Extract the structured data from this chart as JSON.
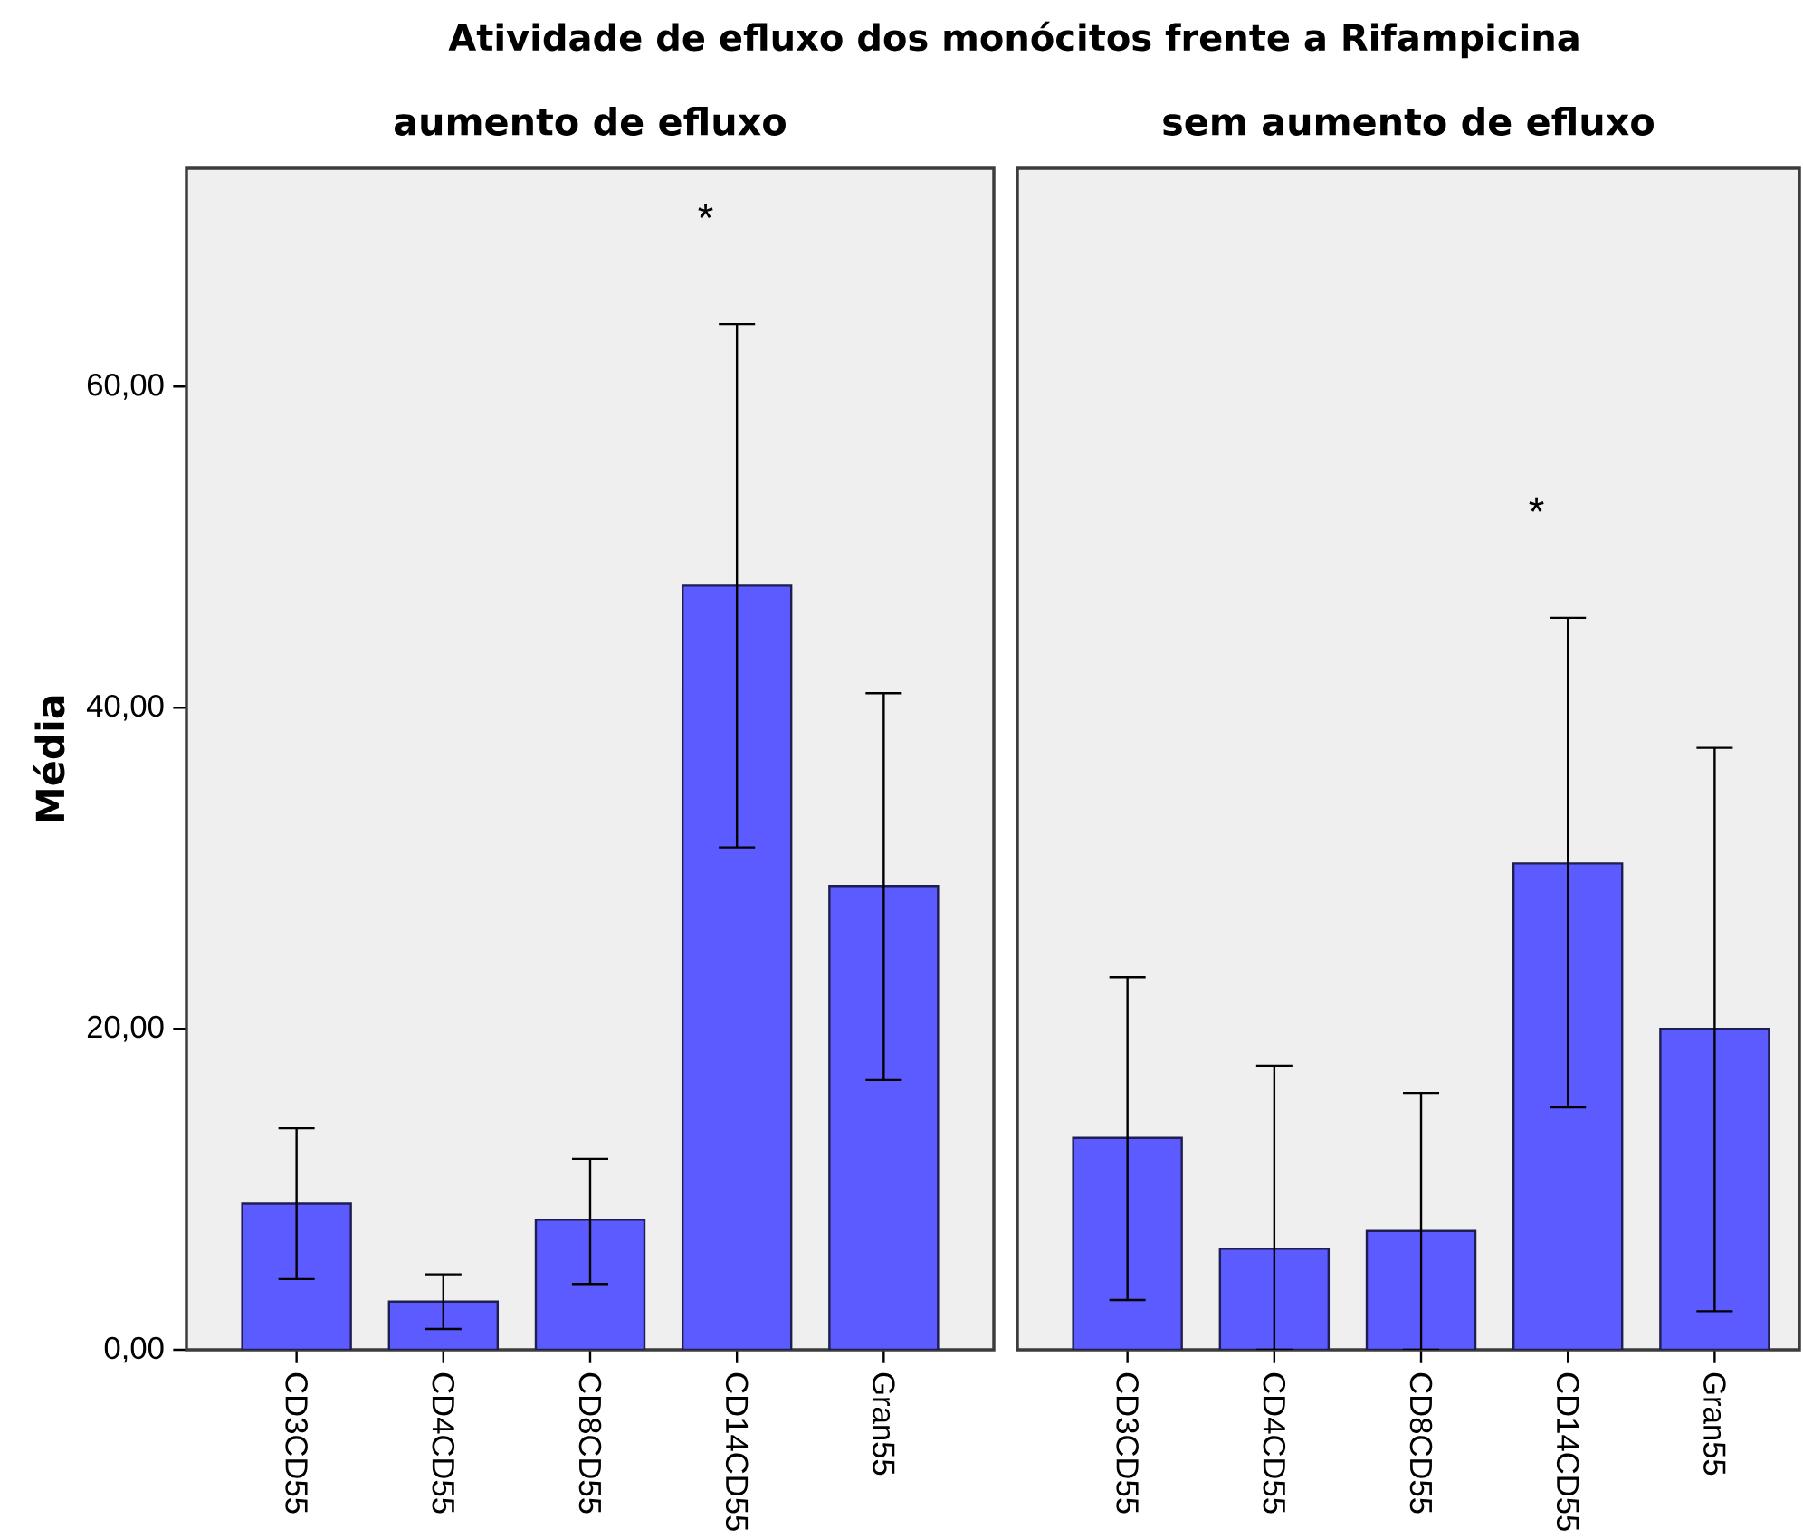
{
  "chart_data": [
    {
      "type": "bar",
      "title": "Atividade de efluxo dos monócitos frente a Rifampicina",
      "subtitle": "aumento de efluxo",
      "ylabel": "Média",
      "categories": [
        "CD3CD55",
        "CD4CD55",
        "CD8CD55",
        "CD14CD55",
        "Gran55"
      ],
      "values": [
        9.1,
        3.0,
        8.1,
        47.6,
        28.9
      ],
      "errors": [
        [
          4.4,
          13.8
        ],
        [
          1.3,
          4.7
        ],
        [
          4.1,
          11.9
        ],
        [
          31.3,
          63.9
        ],
        [
          16.8,
          40.9
        ]
      ],
      "color": "#5b5bff",
      "ylim": [
        0,
        73.6
      ],
      "yticks": [
        {
          "value": 0,
          "label": "0,00"
        },
        {
          "value": 20,
          "label": "20,00"
        },
        {
          "value": 40,
          "label": "40,00"
        },
        {
          "value": 60,
          "label": "60,00"
        }
      ],
      "annotations": [
        "*"
      ]
    },
    {
      "type": "bar",
      "subtitle": "sem aumento de efluxo",
      "categories": [
        "CD3CD55",
        "CD4CD55",
        "CD8CD55",
        "CD14CD55",
        "Gran55"
      ],
      "values": [
        13.2,
        6.3,
        7.4,
        30.3,
        20.0
      ],
      "errors": [
        [
          3.1,
          23.2
        ],
        [
          0,
          17.7
        ],
        [
          0,
          16.0
        ],
        [
          15.1,
          45.6
        ],
        [
          2.4,
          37.5
        ]
      ],
      "color": "#5b5bff",
      "ylim": [
        0,
        73.6
      ],
      "tick_labels": "x",
      "annotations": [
        "*"
      ]
    }
  ]
}
